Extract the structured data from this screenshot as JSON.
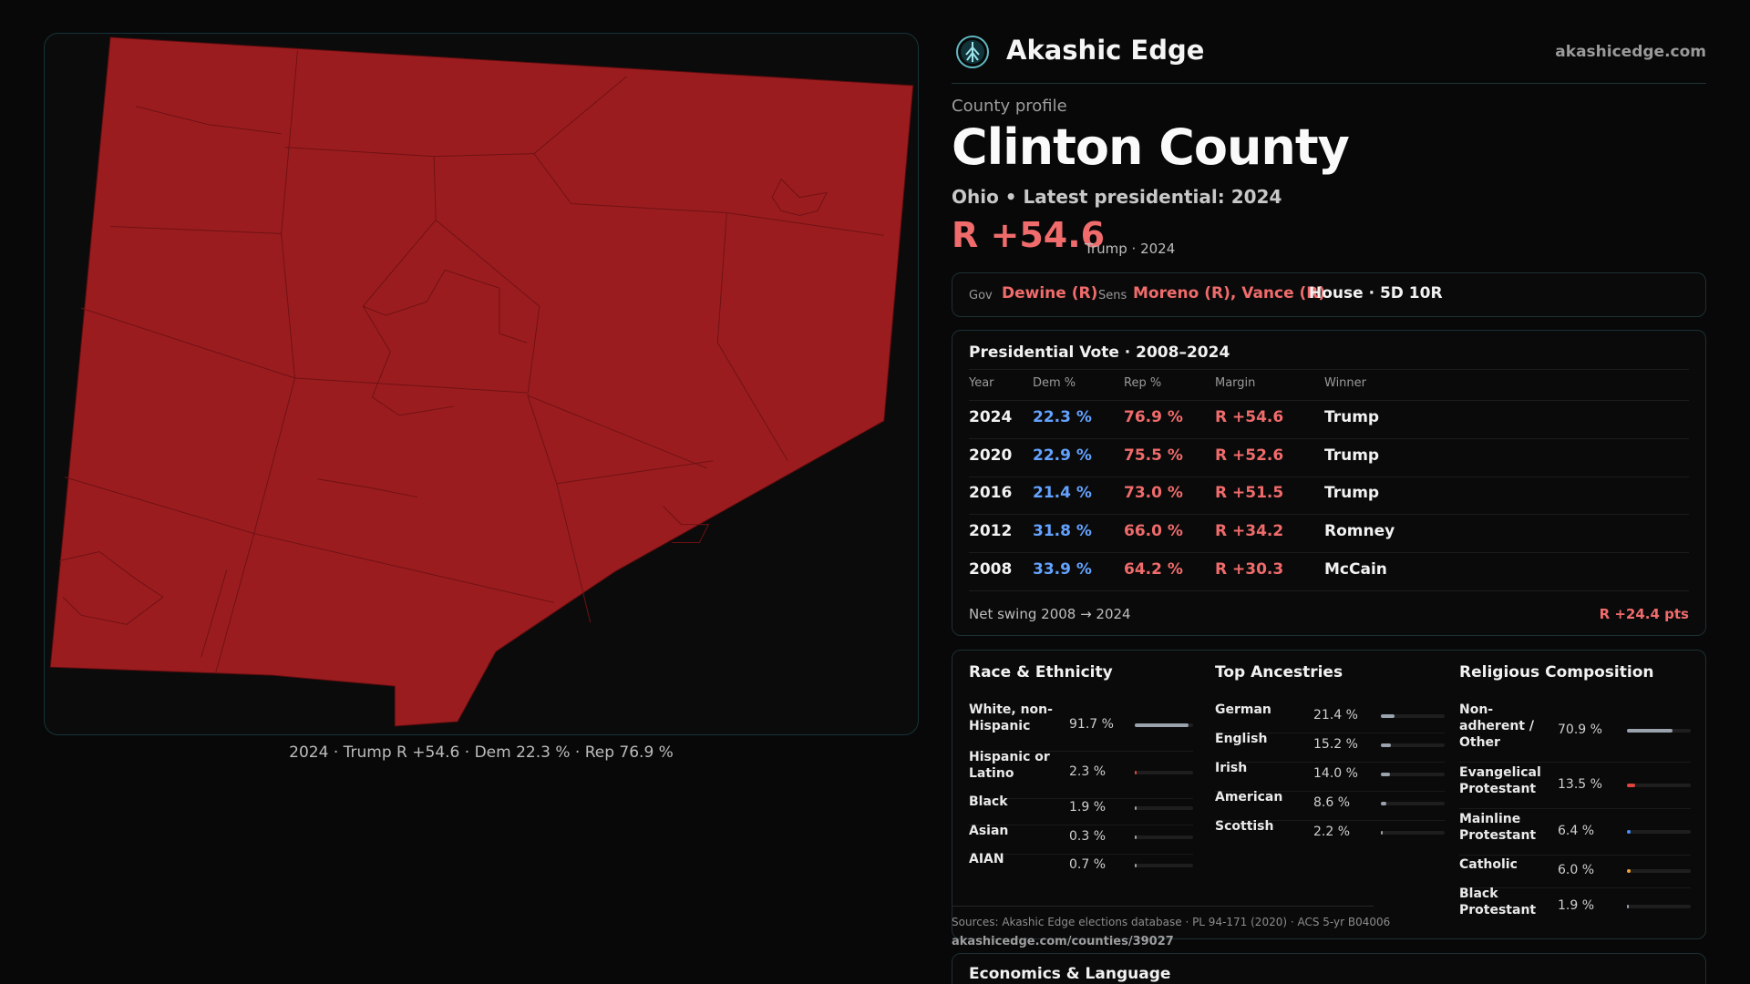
{
  "map": {
    "fill_color": "#9b1c1f",
    "caption": "2024 · Trump R +54.6 · Dem 22.3 % · Rep 76.9 %"
  },
  "header": {
    "brand": "Akashic Edge",
    "site": "akashicedge.com",
    "logo_icon": "tree-globe-icon"
  },
  "profile": {
    "eyebrow": "County profile",
    "title": "Clinton County",
    "subtitle": "Ohio • Latest presidential: 2024",
    "margin": "R +54.6",
    "margin_note": "Trump · 2024"
  },
  "offices": {
    "gov_label": "Gov",
    "gov_value": "Dewine (R)",
    "sens_label": "Sens",
    "sens_value": "Moreno (R), Vance (R)",
    "house_value": "House · 5D 10R"
  },
  "presidential": {
    "title": "Presidential Vote · 2008–2024",
    "columns": [
      "Year",
      "Dem %",
      "Rep %",
      "Margin",
      "Winner"
    ],
    "rows": [
      {
        "year": "2024",
        "dem": "22.3 %",
        "rep": "76.9 %",
        "margin": "R +54.6",
        "winner": "Trump"
      },
      {
        "year": "2020",
        "dem": "22.9 %",
        "rep": "75.5 %",
        "margin": "R +52.6",
        "winner": "Trump"
      },
      {
        "year": "2016",
        "dem": "21.4 %",
        "rep": "73.0 %",
        "margin": "R +51.5",
        "winner": "Trump"
      },
      {
        "year": "2012",
        "dem": "31.8 %",
        "rep": "66.0 %",
        "margin": "R +34.2",
        "winner": "Romney"
      },
      {
        "year": "2008",
        "dem": "33.9 %",
        "rep": "64.2 %",
        "margin": "R +30.3",
        "winner": "McCain"
      }
    ],
    "swing_label": "Net swing 2008 → 2024",
    "swing_value": "R +24.4 pts"
  },
  "race": {
    "title": "Race & Ethnicity",
    "rows": [
      {
        "label": "White, non-Hispanic",
        "pct": "91.7 %",
        "value": 91.7,
        "color": "#9aa3ad"
      },
      {
        "label": "Hispanic or Latino",
        "pct": "2.3 %",
        "value": 2.3,
        "color": "#e0443c"
      },
      {
        "label": "Black",
        "pct": "1.9 %",
        "value": 1.9,
        "color": "#9aa3ad"
      },
      {
        "label": "Asian",
        "pct": "0.3 %",
        "value": 0.3,
        "color": "#9aa3ad"
      },
      {
        "label": "AIAN",
        "pct": "0.7 %",
        "value": 0.7,
        "color": "#9aa3ad"
      }
    ]
  },
  "ancestry": {
    "title": "Top Ancestries",
    "rows": [
      {
        "label": "German",
        "pct": "21.4 %",
        "value": 21.4,
        "color": "#9aa3ad"
      },
      {
        "label": "English",
        "pct": "15.2 %",
        "value": 15.2,
        "color": "#9aa3ad"
      },
      {
        "label": "Irish",
        "pct": "14.0 %",
        "value": 14.0,
        "color": "#9aa3ad"
      },
      {
        "label": "American",
        "pct": "8.6 %",
        "value": 8.6,
        "color": "#9aa3ad"
      },
      {
        "label": "Scottish",
        "pct": "2.2 %",
        "value": 2.2,
        "color": "#9aa3ad"
      }
    ]
  },
  "religion": {
    "title": "Religious Composition",
    "rows": [
      {
        "label": "Non-adherent / Other",
        "pct": "70.9 %",
        "value": 70.9,
        "color": "#9aa3ad"
      },
      {
        "label": "Evangelical Protestant",
        "pct": "13.5 %",
        "value": 13.5,
        "color": "#e0443c"
      },
      {
        "label": "Mainline Protestant",
        "pct": "6.4 %",
        "value": 6.4,
        "color": "#4a8cff"
      },
      {
        "label": "Catholic",
        "pct": "6.0 %",
        "value": 6.0,
        "color": "#f0a030"
      },
      {
        "label": "Black Protestant",
        "pct": "1.9 %",
        "value": 1.9,
        "color": "#9aa3ad"
      }
    ]
  },
  "sources": {
    "text": "Sources: Akashic Edge elections database · PL 94-171 (2020) · ACS 5-yr B04006",
    "url": "akashicedge.com/counties/39027"
  },
  "economics": {
    "title": "Economics & Language"
  }
}
